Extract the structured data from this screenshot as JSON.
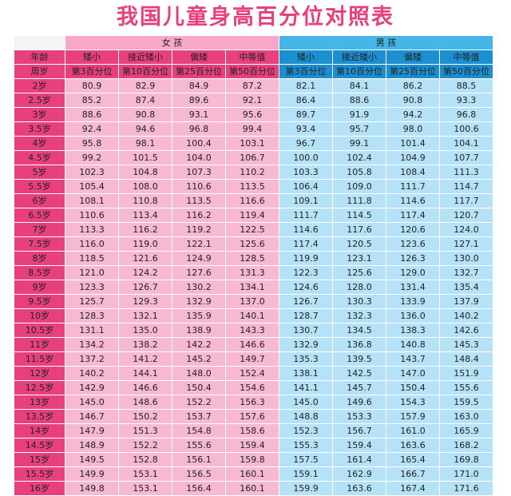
{
  "title": "我国儿童身高百分位对照表",
  "colors": {
    "accent_pink": "#e8407e",
    "accent_blue": "#1c8fd1",
    "girl_cell": "#f7b8d2",
    "boy_cell": "#b5e2f6"
  },
  "header": {
    "girl_label": "女 孩",
    "boy_label": "男 孩",
    "age_label": "年龄",
    "week_label": "周岁",
    "girl_categories": [
      "矮小",
      "接近矮小",
      "偏矮",
      "中等值"
    ],
    "boy_categories": [
      "矮小",
      "接近矮小",
      "偏矮",
      "中等值"
    ],
    "girl_percentiles": [
      "第3百分位",
      "第10百分位",
      "第25百分位",
      "第50百分位"
    ],
    "boy_percentiles": [
      "第3百分位",
      "第10百分位",
      "第25百分位",
      "第50百分位"
    ]
  },
  "rows": [
    {
      "age": "2岁",
      "girl": [
        "80.9",
        "82.9",
        "84.9",
        "87.2"
      ],
      "boy": [
        "82.1",
        "84.1",
        "86.2",
        "88.5"
      ]
    },
    {
      "age": "2.5岁",
      "girl": [
        "85.2",
        "87.4",
        "89.6",
        "92.1"
      ],
      "boy": [
        "86.4",
        "88.6",
        "90.8",
        "93.3"
      ]
    },
    {
      "age": "3岁",
      "girl": [
        "88.6",
        "90.8",
        "93.1",
        "95.6"
      ],
      "boy": [
        "89.7",
        "91.9",
        "94.2",
        "96.8"
      ]
    },
    {
      "age": "3.5岁",
      "girl": [
        "92.4",
        "94.6",
        "96.8",
        "99.4"
      ],
      "boy": [
        "93.4",
        "95.7",
        "98.0",
        "100.6"
      ]
    },
    {
      "age": "4岁",
      "girl": [
        "95.8",
        "98.1",
        "100.4",
        "103.1"
      ],
      "boy": [
        "96.7",
        "99.1",
        "101.4",
        "104.1"
      ]
    },
    {
      "age": "4.5岁",
      "girl": [
        "99.2",
        "101.5",
        "104.0",
        "106.7"
      ],
      "boy": [
        "100.0",
        "102.4",
        "104.9",
        "107.7"
      ]
    },
    {
      "age": "5岁",
      "girl": [
        "102.3",
        "104.8",
        "107.3",
        "110.2"
      ],
      "boy": [
        "103.3",
        "105.8",
        "108.4",
        "111.3"
      ]
    },
    {
      "age": "5.5岁",
      "girl": [
        "105.4",
        "108.0",
        "110.6",
        "113.5"
      ],
      "boy": [
        "106.4",
        "109.0",
        "111.7",
        "114.7"
      ]
    },
    {
      "age": "6岁",
      "girl": [
        "108.1",
        "110.8",
        "113.5",
        "116.6"
      ],
      "boy": [
        "109.1",
        "111.8",
        "114.6",
        "117.7"
      ]
    },
    {
      "age": "6.5岁",
      "girl": [
        "110.6",
        "113.4",
        "116.2",
        "119.4"
      ],
      "boy": [
        "111.7",
        "114.5",
        "117.4",
        "120.7"
      ]
    },
    {
      "age": "7岁",
      "girl": [
        "113.3",
        "116.2",
        "119.2",
        "122.5"
      ],
      "boy": [
        "114.6",
        "117.6",
        "120.6",
        "124.0"
      ]
    },
    {
      "age": "7.5岁",
      "girl": [
        "116.0",
        "119.0",
        "122.1",
        "125.6"
      ],
      "boy": [
        "117.4",
        "120.5",
        "123.6",
        "127.1"
      ]
    },
    {
      "age": "8岁",
      "girl": [
        "118.5",
        "121.6",
        "124.9",
        "128.5"
      ],
      "boy": [
        "119.9",
        "123.1",
        "126.3",
        "130.0"
      ]
    },
    {
      "age": "8.5岁",
      "girl": [
        "121.0",
        "124.2",
        "127.6",
        "131.3"
      ],
      "boy": [
        "122.3",
        "125.6",
        "129.0",
        "132.7"
      ]
    },
    {
      "age": "9岁",
      "girl": [
        "123.3",
        "126.7",
        "130.2",
        "134.1"
      ],
      "boy": [
        "124.6",
        "128.0",
        "131.4",
        "135.4"
      ]
    },
    {
      "age": "9.5岁",
      "girl": [
        "125.7",
        "129.3",
        "132.9",
        "137.0"
      ],
      "boy": [
        "126.7",
        "130.3",
        "133.9",
        "137.9"
      ]
    },
    {
      "age": "10岁",
      "girl": [
        "128.3",
        "132.1",
        "135.9",
        "140.1"
      ],
      "boy": [
        "128.7",
        "132.3",
        "136.0",
        "140.2"
      ]
    },
    {
      "age": "10.5岁",
      "girl": [
        "131.1",
        "135.0",
        "138.9",
        "143.3"
      ],
      "boy": [
        "130.7",
        "134.5",
        "138.3",
        "142.6"
      ]
    },
    {
      "age": "11岁",
      "girl": [
        "134.2",
        "138.2",
        "142.2",
        "146.6"
      ],
      "boy": [
        "132.9",
        "136.8",
        "140.8",
        "145.3"
      ]
    },
    {
      "age": "11.5岁",
      "girl": [
        "137.2",
        "141.2",
        "145.2",
        "149.7"
      ],
      "boy": [
        "135.3",
        "139.5",
        "143.7",
        "148.4"
      ]
    },
    {
      "age": "12岁",
      "girl": [
        "140.2",
        "144.1",
        "148.0",
        "152.4"
      ],
      "boy": [
        "138.1",
        "142.5",
        "147.0",
        "151.9"
      ]
    },
    {
      "age": "12.5岁",
      "girl": [
        "142.9",
        "146.6",
        "150.4",
        "154.6"
      ],
      "boy": [
        "141.1",
        "145.7",
        "150.4",
        "155.6"
      ]
    },
    {
      "age": "13岁",
      "girl": [
        "145.0",
        "148.6",
        "152.2",
        "156.3"
      ],
      "boy": [
        "145.0",
        "149.6",
        "154.3",
        "159.5"
      ]
    },
    {
      "age": "13.5岁",
      "girl": [
        "146.7",
        "150.2",
        "153.7",
        "157.6"
      ],
      "boy": [
        "148.8",
        "153.3",
        "157.9",
        "163.0"
      ]
    },
    {
      "age": "14岁",
      "girl": [
        "147.9",
        "151.3",
        "154.8",
        "158.6"
      ],
      "boy": [
        "152.3",
        "156.7",
        "161.0",
        "165.9"
      ]
    },
    {
      "age": "14.5岁",
      "girl": [
        "148.9",
        "152.2",
        "155.6",
        "159.4"
      ],
      "boy": [
        "155.3",
        "159.4",
        "163.6",
        "168.2"
      ]
    },
    {
      "age": "15岁",
      "girl": [
        "149.5",
        "152.8",
        "156.1",
        "159.8"
      ],
      "boy": [
        "157.5",
        "161.4",
        "165.4",
        "169.8"
      ]
    },
    {
      "age": "15.5岁",
      "girl": [
        "149.9",
        "153.1",
        "156.5",
        "160.1"
      ],
      "boy": [
        "159.1",
        "162.9",
        "166.7",
        "171.0"
      ]
    },
    {
      "age": "16岁",
      "girl": [
        "149.8",
        "153.1",
        "156.4",
        "160.1"
      ],
      "boy": [
        "159.9",
        "163.6",
        "167.4",
        "171.6"
      ]
    }
  ]
}
